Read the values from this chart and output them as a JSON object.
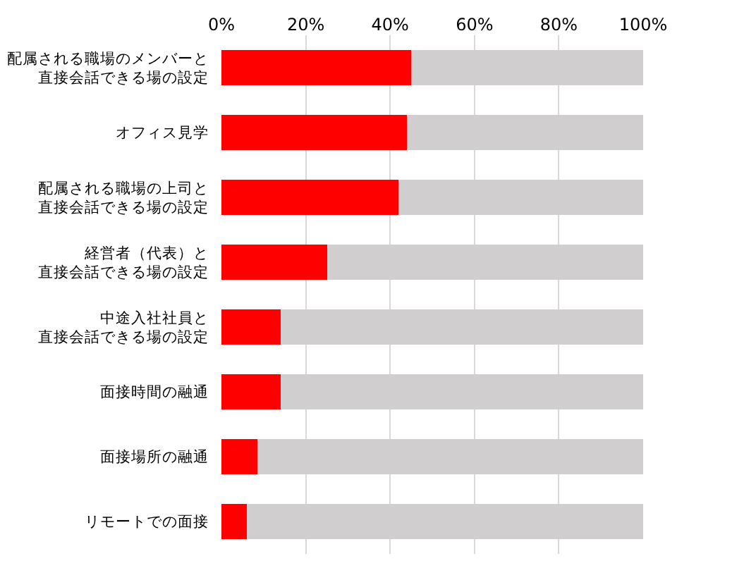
{
  "chart_data": {
    "type": "bar",
    "orientation": "horizontal",
    "stacked": true,
    "categories": [
      "配属される職場のメンバーと直接会話できる場の設定",
      "オフィス見学",
      "配属される職場の上司と直接会話できる場の設定",
      "経営者（代表）と直接会話できる場の設定",
      "中途入社社員と直接会話できる場の設定",
      "面接時間の融通",
      "面接場所の融通",
      "リモートでの面接"
    ],
    "series": [
      {
        "color": "#ff0000",
        "values": [
          45,
          44,
          42,
          25,
          14,
          14,
          8.5,
          6
        ]
      },
      {
        "color": "#d0cece",
        "values": [
          55,
          56,
          58,
          75,
          86,
          86,
          91.5,
          94
        ]
      }
    ],
    "xlim": [
      0,
      100
    ],
    "xticks": [
      {
        "value": 0,
        "label": "0%"
      },
      {
        "value": 20,
        "label": "20%"
      },
      {
        "value": 40,
        "label": "40%"
      },
      {
        "value": 60,
        "label": "60%"
      },
      {
        "value": 80,
        "label": "80%"
      },
      {
        "value": 100,
        "label": "100%"
      }
    ],
    "grid": "x"
  }
}
